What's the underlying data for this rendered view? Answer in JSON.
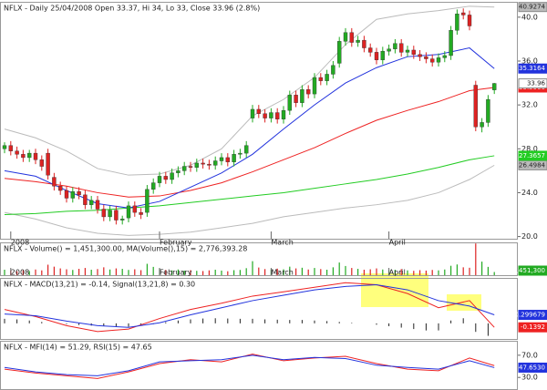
{
  "chart_data": [
    {
      "type": "candlestick",
      "title": "NFLX - Daily 25/04/2008 Open 33.37, Hi 34, Lo 33, Close 33.96 (2.8%)",
      "categories": [
        null,
        "2008",
        null,
        null,
        null,
        null,
        null,
        null,
        null,
        null,
        null,
        null,
        null,
        null,
        null,
        null,
        null,
        null,
        null,
        null,
        null,
        null,
        null,
        null,
        null,
        "February",
        null,
        null,
        null,
        null,
        null,
        null,
        null,
        null,
        null,
        null,
        null,
        null,
        null,
        null,
        null,
        null,
        null,
        "March",
        null,
        null,
        null,
        null,
        null,
        null,
        null,
        null,
        null,
        null,
        null,
        null,
        null,
        null,
        null,
        null,
        null,
        null,
        "April",
        null,
        null,
        null,
        null,
        null,
        null,
        null,
        null,
        null,
        null,
        null,
        null,
        null,
        null,
        null,
        null,
        null
      ],
      "open": [
        28.0,
        28.3,
        27.8,
        27.5,
        27.2,
        27.6,
        27.0,
        27.6,
        25.4,
        24.6,
        24.2,
        23.5,
        24.1,
        23.8,
        22.9,
        23.3,
        22.5,
        21.8,
        22.4,
        21.5,
        21.7,
        22.8,
        22.2,
        22.2,
        24.3,
        24.9,
        25.5,
        25.2,
        25.8,
        26.0,
        26.4,
        26.3,
        26.7,
        26.6,
        26.5,
        26.9,
        27.2,
        26.8,
        27.5,
        27.6,
        30.8,
        31.6,
        31.2,
        30.8,
        31.3,
        30.7,
        31.5,
        32.9,
        32.2,
        33.4,
        33.0,
        34.5,
        34.2,
        34.8,
        35.8,
        37.8,
        38.6,
        37.7,
        37.9,
        37.2,
        36.8,
        36.1,
        36.9,
        37.1,
        37.6,
        36.8,
        37.0,
        36.6,
        36.4,
        36.2,
        35.9,
        36.3,
        36.5,
        38.8,
        40.4,
        40.2,
        33.8,
        30.0,
        30.4,
        33.37
      ],
      "high": [
        28.6,
        28.7,
        28.2,
        27.9,
        27.9,
        28.0,
        27.4,
        28.0,
        25.8,
        25.0,
        24.6,
        24.5,
        24.5,
        24.2,
        23.7,
        23.7,
        22.9,
        22.8,
        22.8,
        21.9,
        23.2,
        23.2,
        22.6,
        24.7,
        25.3,
        25.9,
        25.9,
        26.2,
        26.4,
        26.8,
        26.8,
        27.1,
        27.1,
        27.0,
        27.3,
        27.6,
        27.6,
        27.9,
        28.0,
        28.7,
        32.0,
        32.0,
        31.6,
        31.7,
        31.7,
        31.9,
        33.3,
        33.3,
        33.8,
        33.8,
        34.9,
        34.9,
        35.2,
        36.0,
        38.2,
        39.0,
        39.0,
        38.3,
        38.3,
        37.6,
        37.2,
        37.3,
        37.5,
        38.0,
        38.0,
        37.4,
        37.4,
        37.0,
        36.8,
        36.6,
        36.7,
        36.9,
        39.2,
        40.7,
        40.8,
        40.6,
        34.2,
        30.8,
        32.9,
        34
      ],
      "low": [
        27.6,
        27.4,
        27.1,
        26.8,
        26.8,
        26.6,
        26.0,
        25.2,
        24.2,
        23.8,
        23.1,
        23.1,
        23.4,
        22.5,
        22.5,
        22.1,
        21.4,
        21.4,
        21.1,
        21.1,
        21.3,
        21.8,
        21.6,
        21.8,
        23.9,
        24.5,
        24.8,
        24.8,
        25.4,
        25.6,
        25.9,
        25.9,
        26.2,
        26.1,
        26.1,
        26.5,
        26.4,
        26.4,
        27.1,
        27.2,
        30.4,
        30.8,
        30.4,
        30.4,
        30.3,
        30.3,
        31.1,
        31.8,
        31.8,
        32.6,
        32.6,
        33.8,
        33.8,
        34.4,
        35.4,
        37.4,
        37.3,
        37.3,
        36.8,
        36.4,
        35.7,
        35.7,
        36.5,
        36.7,
        36.4,
        36.4,
        36.2,
        36.0,
        35.8,
        35.5,
        35.5,
        35.9,
        36.1,
        38.4,
        39.8,
        38.8,
        29.6,
        29.5,
        30.0,
        33
      ],
      "close": [
        28.3,
        27.8,
        27.5,
        27.2,
        27.6,
        27.0,
        26.4,
        25.6,
        24.6,
        24.2,
        23.5,
        24.1,
        23.8,
        22.9,
        23.3,
        22.5,
        21.8,
        22.4,
        21.5,
        21.6,
        22.8,
        22.2,
        22.0,
        24.3,
        24.9,
        25.5,
        25.2,
        25.8,
        26.0,
        26.4,
        26.3,
        26.7,
        26.6,
        26.5,
        26.9,
        27.2,
        26.8,
        27.5,
        27.6,
        28.3,
        31.6,
        31.2,
        30.8,
        31.3,
        30.7,
        31.5,
        32.9,
        32.2,
        33.4,
        33.0,
        34.5,
        34.2,
        34.8,
        35.6,
        37.8,
        38.6,
        37.7,
        37.9,
        37.2,
        36.8,
        36.1,
        36.9,
        37.1,
        37.6,
        36.8,
        37.0,
        36.6,
        36.4,
        36.2,
        35.9,
        36.3,
        36.5,
        38.8,
        40.3,
        40.2,
        39.2,
        30.0,
        30.4,
        32.5,
        33.96
      ],
      "close_label": "33.96",
      "up_color": "#22aa22",
      "down_color": "#dd2222",
      "ylim": [
        19.8,
        41.4
      ],
      "yticks": [
        {
          "value": 40,
          "label": "40.0"
        },
        {
          "value": 36,
          "label": "36.0"
        },
        {
          "value": 32,
          "label": "32.0"
        },
        {
          "value": 28,
          "label": "28.0"
        },
        {
          "value": 24,
          "label": "24.0"
        },
        {
          "value": 20,
          "label": "20.0"
        }
      ],
      "overlays": {
        "x": [
          0,
          5,
          10,
          15,
          20,
          25,
          30,
          35,
          40,
          45,
          50,
          55,
          60,
          65,
          70,
          75,
          79
        ],
        "series": [
          {
            "color": "#bbbbbb",
            "values": [
              29.8,
              29.0,
              27.8,
              26.2,
              25.6,
              25.7,
              26.5,
              28.0,
              31.0,
              32.5,
              34.5,
              37.5,
              39.8,
              40.3,
              40.6,
              41.0,
              40.9274
            ],
            "end_label": "40.9274"
          },
          {
            "color": "#bbbbbb",
            "values": [
              22.2,
              21.6,
              20.8,
              20.3,
              20.1,
              20.2,
              20.4,
              20.8,
              21.2,
              21.8,
              22.2,
              22.6,
              22.9,
              23.3,
              24.0,
              25.2,
              26.4984
            ],
            "end_label": "26.4984"
          },
          {
            "color": "#22cc22",
            "values": [
              22.0,
              22.1,
              22.3,
              22.4,
              22.6,
              22.8,
              23.1,
              23.4,
              23.7,
              24.0,
              24.4,
              24.8,
              25.2,
              25.7,
              26.3,
              27.0,
              27.3657
            ],
            "end_label": "27.3657"
          },
          {
            "color": "#ee2222",
            "values": [
              25.3,
              25.0,
              24.6,
              24.0,
              23.6,
              23.7,
              24.2,
              24.9,
              25.9,
              27.0,
              28.1,
              29.4,
              30.6,
              31.5,
              32.3,
              33.3,
              33.5906
            ],
            "end_label": "33.5906"
          },
          {
            "color": "#2233dd",
            "values": [
              26.0,
              25.5,
              24.2,
              23.0,
              22.6,
              23.2,
              24.5,
              25.8,
              27.5,
              29.8,
              32.0,
              34.0,
              35.4,
              36.4,
              36.6,
              37.2,
              35.3164
            ],
            "end_label": "35.3164"
          }
        ]
      }
    },
    {
      "type": "bar",
      "title": "NFLX - Volume() = 1,451,300.00, MA(Volume(),15) = 2,776,393.28",
      "values": [
        2500000,
        2100000,
        1800000,
        2300000,
        1900000,
        2600000,
        2200000,
        4800000,
        3900000,
        3100000,
        2700000,
        2400000,
        2900000,
        3300000,
        2500000,
        2800000,
        3600000,
        2600000,
        3100000,
        2900000,
        2400000,
        2700000,
        2300000,
        5200000,
        3800000,
        3000000,
        2400000,
        2200000,
        2600000,
        2100000,
        2300000,
        2000000,
        1900000,
        2200000,
        2500000,
        2100000,
        1800000,
        2300000,
        2400000,
        3200000,
        6400000,
        3500000,
        2800000,
        2600000,
        3000000,
        2700000,
        3900000,
        3100000,
        3400000,
        2600000,
        3300000,
        2800000,
        2500000,
        3600000,
        5800000,
        4200000,
        3300000,
        2900000,
        2500000,
        2700000,
        3100000,
        2600000,
        2300000,
        2500000,
        2800000,
        2200000,
        2000000,
        2300000,
        2100000,
        2400000,
        2200000,
        2600000,
        4300000,
        4900000,
        3600000,
        3400000,
        14500000,
        6200000,
        3800000,
        1451300
      ],
      "end_label": "1,451,300",
      "label_color": "#22aa22",
      "ylim": [
        0,
        15000000
      ]
    },
    {
      "type": "line",
      "title": "NFLX - MACD(13,21) = -0.14, Signal(13,21,8) = 0.30",
      "x": [
        0,
        5,
        10,
        15,
        20,
        25,
        30,
        35,
        40,
        45,
        50,
        55,
        60,
        65,
        70,
        75,
        79
      ],
      "series": [
        {
          "color": "#ee2222",
          "values": [
            0.49,
            0.24,
            -0.08,
            -0.29,
            -0.2,
            0.17,
            0.49,
            0.71,
            0.96,
            1.11,
            1.27,
            1.43,
            1.36,
            1.05,
            0.55,
            0.8,
            -0.1392
          ],
          "end_label": "-0.1392"
        },
        {
          "color": "#2233dd",
          "values": [
            0.33,
            0.27,
            0.08,
            -0.08,
            -0.14,
            0.02,
            0.3,
            0.55,
            0.8,
            0.99,
            1.18,
            1.3,
            1.36,
            1.18,
            0.8,
            0.61,
            0.299679
          ],
          "end_label": "0.299679"
        }
      ],
      "histogram": {
        "color": "#222222",
        "x": [
          0,
          2,
          4,
          6,
          8,
          10,
          12,
          14,
          16,
          18,
          20,
          22,
          24,
          26,
          28,
          30,
          32,
          34,
          36,
          38,
          40,
          42,
          44,
          46,
          48,
          50,
          52,
          54,
          56,
          58,
          60,
          62,
          64,
          66,
          68,
          70,
          72,
          74,
          76,
          78
        ],
        "values": [
          0.16,
          0.14,
          0.1,
          0.05,
          0.0,
          -0.03,
          -0.06,
          -0.08,
          -0.1,
          -0.12,
          -0.12,
          -0.08,
          -0.03,
          0.04,
          0.1,
          0.14,
          0.17,
          0.18,
          0.17,
          0.16,
          0.16,
          0.14,
          0.13,
          0.12,
          0.12,
          0.1,
          0.08,
          0.05,
          0.02,
          0.0,
          -0.05,
          -0.1,
          -0.15,
          -0.2,
          -0.25,
          -0.25,
          0.1,
          0.18,
          -0.3,
          -0.44
        ]
      },
      "ylim": [
        -0.55,
        1.6
      ]
    },
    {
      "type": "line",
      "title": "NFLX - MFI(14) = 51.29, RSI(15) = 47.65",
      "x": [
        0,
        5,
        10,
        15,
        20,
        25,
        30,
        35,
        40,
        45,
        50,
        55,
        60,
        65,
        70,
        75,
        79
      ],
      "series": [
        {
          "color": "#ee2222",
          "values": [
            45,
            38,
            33,
            28,
            40,
            55,
            62,
            58,
            72,
            60,
            65,
            68,
            55,
            45,
            42,
            65,
            51.29
          ]
        },
        {
          "color": "#2233dd",
          "values": [
            48,
            40,
            35,
            33,
            42,
            58,
            60,
            62,
            70,
            62,
            66,
            64,
            52,
            48,
            45,
            60,
            47.653
          ],
          "end_label": "47.6530"
        }
      ],
      "ylim": [
        9,
        96
      ],
      "yticks": [
        {
          "value": 70,
          "label": "70.0"
        },
        {
          "value": 30,
          "label": "30.0"
        }
      ]
    }
  ]
}
